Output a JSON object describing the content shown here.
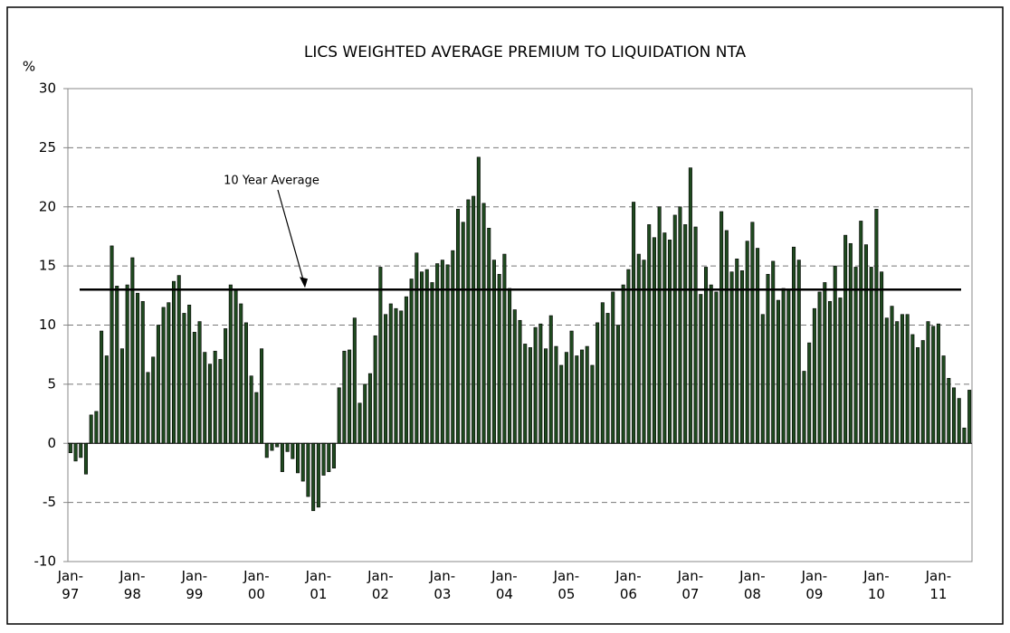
{
  "chart_data": {
    "type": "bar",
    "title": "LICS WEIGHTED AVERAGE PREMIUM TO LIQUIDATION NTA",
    "y_label": "%",
    "color": "#1f4a1f",
    "ylim": [
      -10,
      30
    ],
    "yticks": [
      -10,
      -5,
      0,
      5,
      10,
      15,
      20,
      25,
      30
    ],
    "grid": true,
    "average": {
      "value": 13,
      "label": "10 Year Average"
    },
    "categories": [
      "Jan-\n97",
      null,
      null,
      null,
      null,
      null,
      null,
      null,
      null,
      null,
      null,
      null,
      "Jan-\n98",
      null,
      null,
      null,
      null,
      null,
      null,
      null,
      null,
      null,
      null,
      null,
      "Jan-\n99",
      null,
      null,
      null,
      null,
      null,
      null,
      null,
      null,
      null,
      null,
      null,
      "Jan-\n00",
      null,
      null,
      null,
      null,
      null,
      null,
      null,
      null,
      null,
      null,
      null,
      "Jan-\n01",
      null,
      null,
      null,
      null,
      null,
      null,
      null,
      null,
      null,
      null,
      null,
      "Jan-\n02",
      null,
      null,
      null,
      null,
      null,
      null,
      null,
      null,
      null,
      null,
      null,
      "Jan-\n03",
      null,
      null,
      null,
      null,
      null,
      null,
      null,
      null,
      null,
      null,
      null,
      "Jan-\n04",
      null,
      null,
      null,
      null,
      null,
      null,
      null,
      null,
      null,
      null,
      null,
      "Jan-\n05",
      null,
      null,
      null,
      null,
      null,
      null,
      null,
      null,
      null,
      null,
      null,
      "Jan-\n06",
      null,
      null,
      null,
      null,
      null,
      null,
      null,
      null,
      null,
      null,
      null,
      "Jan-\n07",
      null,
      null,
      null,
      null,
      null,
      null,
      null,
      null,
      null,
      null,
      null,
      "Jan-\n08",
      null,
      null,
      null,
      null,
      null,
      null,
      null,
      null,
      null,
      null,
      null,
      "Jan-\n09",
      null,
      null,
      null,
      null,
      null,
      null,
      null,
      null,
      null,
      null,
      null,
      "Jan-\n10",
      null,
      null,
      null,
      null,
      null,
      null,
      null,
      null,
      null,
      null,
      null,
      "Jan-\n11",
      null,
      null,
      null,
      null,
      null,
      null
    ],
    "values": [
      -0.8,
      -1.5,
      -1.2,
      -2.6,
      2.4,
      2.7,
      9.5,
      7.4,
      16.7,
      13.3,
      8.0,
      13.4,
      15.7,
      12.7,
      12.0,
      6.0,
      7.3,
      10.0,
      11.5,
      11.9,
      13.7,
      14.2,
      11.0,
      11.7,
      9.4,
      10.3,
      7.7,
      6.7,
      7.8,
      7.1,
      9.7,
      13.4,
      13.0,
      11.8,
      10.2,
      5.7,
      4.3,
      8.0,
      -1.2,
      -0.6,
      -0.3,
      -2.4,
      -0.7,
      -1.3,
      -2.5,
      -3.2,
      -4.5,
      -5.7,
      -5.4,
      -2.7,
      -2.4,
      -2.1,
      4.7,
      7.8,
      7.9,
      10.6,
      3.4,
      5.0,
      5.9,
      9.1,
      14.9,
      10.9,
      11.8,
      11.4,
      11.2,
      12.4,
      13.9,
      16.1,
      14.5,
      14.7,
      13.6,
      15.2,
      15.5,
      15.1,
      16.3,
      19.8,
      18.7,
      20.6,
      20.9,
      24.2,
      20.3,
      18.2,
      15.5,
      14.3,
      16.0,
      13.1,
      11.3,
      10.4,
      8.4,
      8.1,
      9.8,
      10.1,
      8.0,
      10.8,
      8.2,
      6.6,
      7.7,
      9.5,
      7.4,
      7.9,
      8.2,
      6.6,
      10.2,
      11.9,
      11.0,
      12.8,
      10.0,
      13.4,
      14.7,
      20.4,
      16.0,
      15.5,
      18.5,
      17.4,
      20.0,
      17.8,
      17.2,
      19.3,
      20.0,
      18.5,
      23.3,
      18.3,
      12.6,
      14.9,
      13.4,
      12.8,
      19.6,
      18.0,
      14.5,
      15.6,
      14.6,
      17.1,
      18.7,
      16.5,
      10.9,
      14.3,
      15.4,
      12.1,
      13.1,
      13.0,
      16.6,
      15.5,
      6.1,
      8.5,
      11.4,
      12.8,
      13.6,
      12.0,
      15.0,
      12.3,
      17.6,
      16.9,
      14.9,
      18.8,
      16.8,
      14.9,
      19.8,
      14.5,
      10.6,
      11.6,
      10.3,
      10.9,
      10.9,
      9.2,
      8.1,
      8.7,
      10.3,
      9.9,
      10.1,
      7.4,
      5.5,
      4.7,
      3.8,
      1.3,
      4.5
    ]
  }
}
